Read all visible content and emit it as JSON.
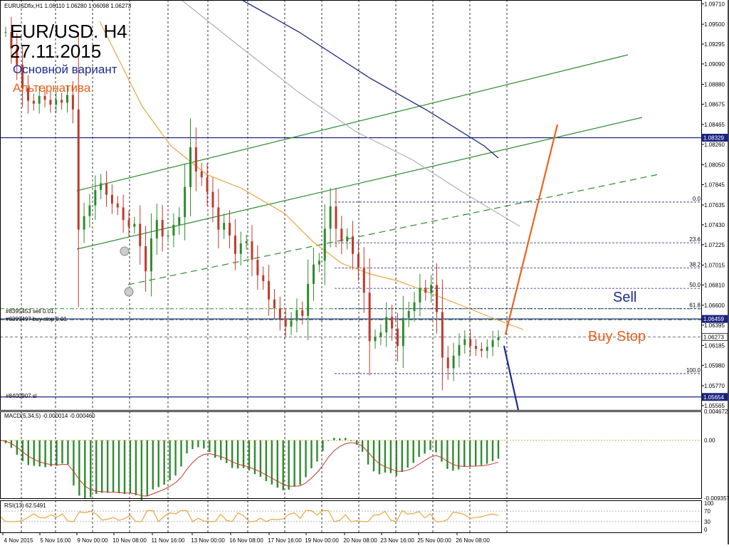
{
  "header": {
    "symbol_line": "EURUSDfix,H1  1.06110 1.06280 1.06098 1.06273",
    "title": "EUR/USD. H4",
    "date": "27.11.2015",
    "main_variant": "Основной вариант",
    "alternative": "Альтернатива"
  },
  "colors": {
    "bullish": "#2e8b2e",
    "bearish": "#c0392b",
    "main_variant": "#1a2d8f",
    "alternative": "#e8621f",
    "channel": "#2e8b2e",
    "ma_orange": "#e8a640",
    "ma_navy": "#1a237e",
    "ma_gray": "#b0b0b0"
  },
  "annotations": {
    "sell": "Sell",
    "buy_stop": "Buy Stop",
    "order_sell": "#8395453 sell 0.01",
    "order_buystop": "#8399497 buy stop 0.01",
    "order_sl": "#8400907 sl"
  },
  "chart_data": [
    {
      "type": "line",
      "panel": "price",
      "symbol": "EURUSDfix",
      "timeframe": "H1",
      "ohlc": {
        "open": 1.0611,
        "high": 1.0628,
        "low": 1.06098,
        "close": 1.06273
      },
      "x_ticks": [
        "4 Nov 2015",
        "5 Nov 16:00",
        "9 Nov 00:00",
        "10 Nov 08:00",
        "11 Nov 16:00",
        "13 Nov 00:00",
        "16 Nov 08:00",
        "17 Nov 16:00",
        "19 Nov 00:00",
        "20 Nov 08:00",
        "23 Nov 16:00",
        "25 Nov 00:00",
        "26 Nov 08:00"
      ],
      "y_ticks": [
        "1.09710",
        "1.09500",
        "1.09295",
        "1.09090",
        "1.08880",
        "1.08675",
        "1.08465",
        "1.08260",
        "1.08050",
        "1.07845",
        "1.07635",
        "1.07430",
        "1.07225",
        "1.07015",
        "1.06810",
        "1.06600",
        "1.06395",
        "1.06185",
        "1.05980",
        "1.05770",
        "1.05565"
      ],
      "ylim": [
        1.0552,
        1.0975
      ],
      "price_labels": [
        {
          "text": "1.08329",
          "color": "#1a237e"
        },
        {
          "text": "1.06459",
          "color": "#1a237e"
        },
        {
          "text": "1.06273",
          "color": "#444444"
        },
        {
          "text": "1.05654",
          "color": "#1a237e"
        }
      ],
      "fibonacci": [
        {
          "level": "0.0",
          "price": 1.07665
        },
        {
          "level": "23.6",
          "price": 1.07245
        },
        {
          "level": "38.2",
          "price": 1.06985
        },
        {
          "level": "50.0",
          "price": 1.06775
        },
        {
          "level": "61.8",
          "price": 1.06565
        },
        {
          "level": "100.0",
          "price": 1.05895
        }
      ],
      "close_series": [
        1.0942,
        1.0925,
        1.0908,
        1.0884,
        1.0871,
        1.0868,
        1.0876,
        1.0872,
        1.0867,
        1.0872,
        1.0869,
        1.0877,
        1.0862,
        1.0738,
        1.0752,
        1.0763,
        1.0779,
        1.0786,
        1.0774,
        1.0765,
        1.0761,
        1.0748,
        1.0741,
        1.0744,
        1.0721,
        1.0695,
        1.0729,
        1.0748,
        1.0731,
        1.0732,
        1.0743,
        1.0751,
        1.0782,
        1.0823,
        1.0798,
        1.0792,
        1.0777,
        1.0761,
        1.0738,
        1.0745,
        1.0732,
        1.0713,
        1.0724,
        1.0726,
        1.0707,
        1.0691,
        1.0685,
        1.0666,
        1.0657,
        1.0646,
        1.0638,
        1.0644,
        1.0655,
        1.0649,
        1.0682,
        1.0702,
        1.0706,
        1.0739,
        1.0762,
        1.0739,
        1.0726,
        1.0731,
        1.0713,
        1.0699,
        1.0673,
        1.0623,
        1.0627,
        1.0632,
        1.0648,
        1.0636,
        1.0618,
        1.0647,
        1.0654,
        1.0663,
        1.0678,
        1.0673,
        1.0681,
        1.0653,
        1.0606,
        1.0595,
        1.0608,
        1.0619,
        1.0625,
        1.0618,
        1.0615,
        1.0613,
        1.0617,
        1.0624,
        1.0627
      ]
    },
    {
      "type": "bar",
      "panel": "MACD",
      "label": "MACD(5,34,5) -0.000014 -0.000460",
      "y_ticks": [
        "0.004672",
        "0.00",
        "-0.009357"
      ],
      "ylim": [
        -0.009357,
        0.004672
      ]
    },
    {
      "type": "line",
      "panel": "RSI",
      "label": "RSI(13) 62.5491",
      "y_ticks": [
        "100",
        "70",
        "30",
        "0"
      ],
      "ylim": [
        0,
        100
      ]
    }
  ]
}
